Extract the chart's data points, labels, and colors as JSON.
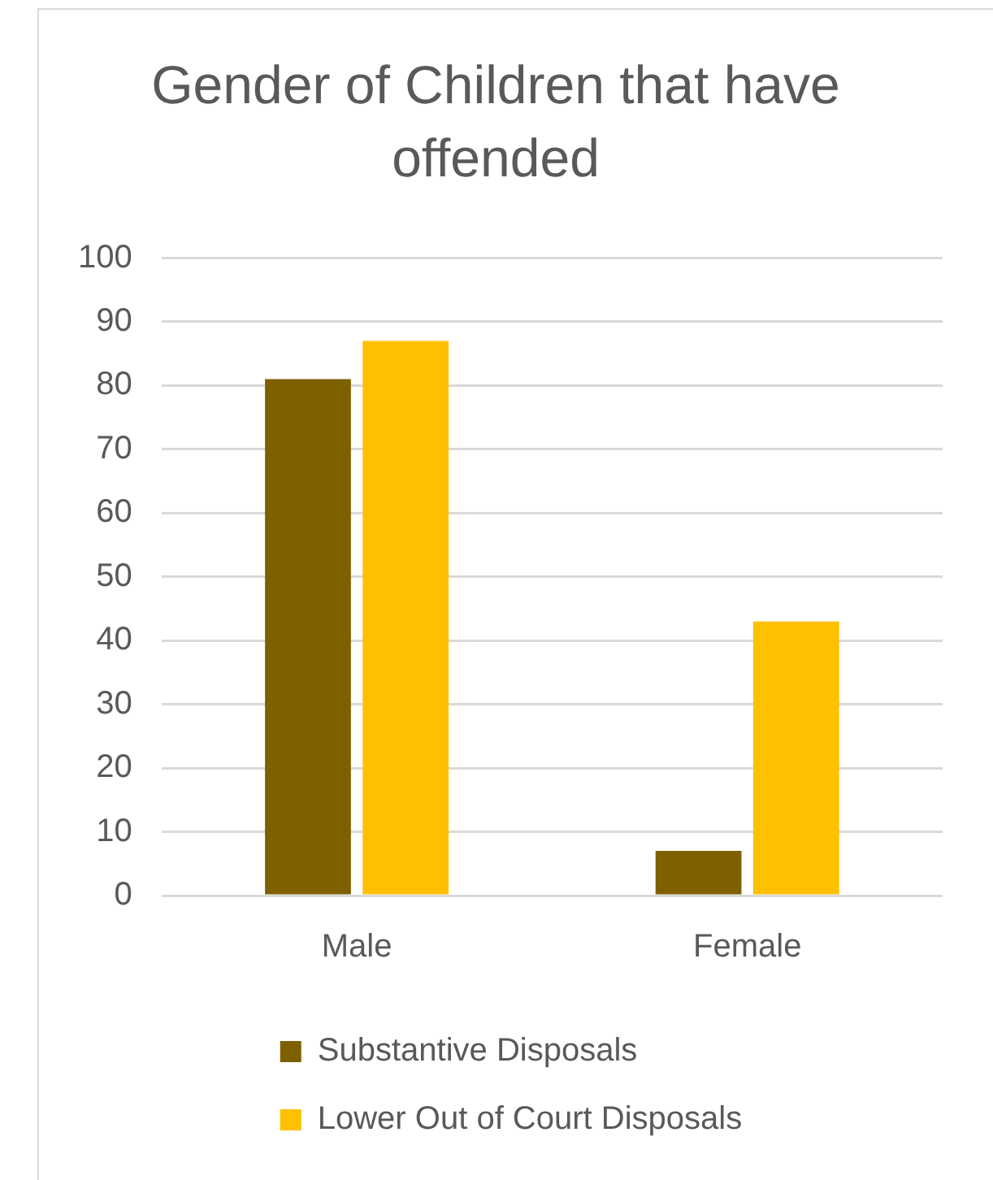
{
  "chart_data": {
    "type": "bar",
    "title": "Gender of Children that have offended",
    "categories": [
      "Male",
      "Female"
    ],
    "series": [
      {
        "name": "Substantive Disposals",
        "color": "#7f6000",
        "values": [
          81,
          7
        ]
      },
      {
        "name": "Lower Out of Court Disposals",
        "color": "#ffc000",
        "values": [
          87,
          43
        ]
      }
    ],
    "ylim": [
      0,
      100
    ],
    "yticks": [
      0,
      10,
      20,
      30,
      40,
      50,
      60,
      70,
      80,
      90,
      100
    ],
    "grid": "y",
    "legend": "bottom"
  }
}
